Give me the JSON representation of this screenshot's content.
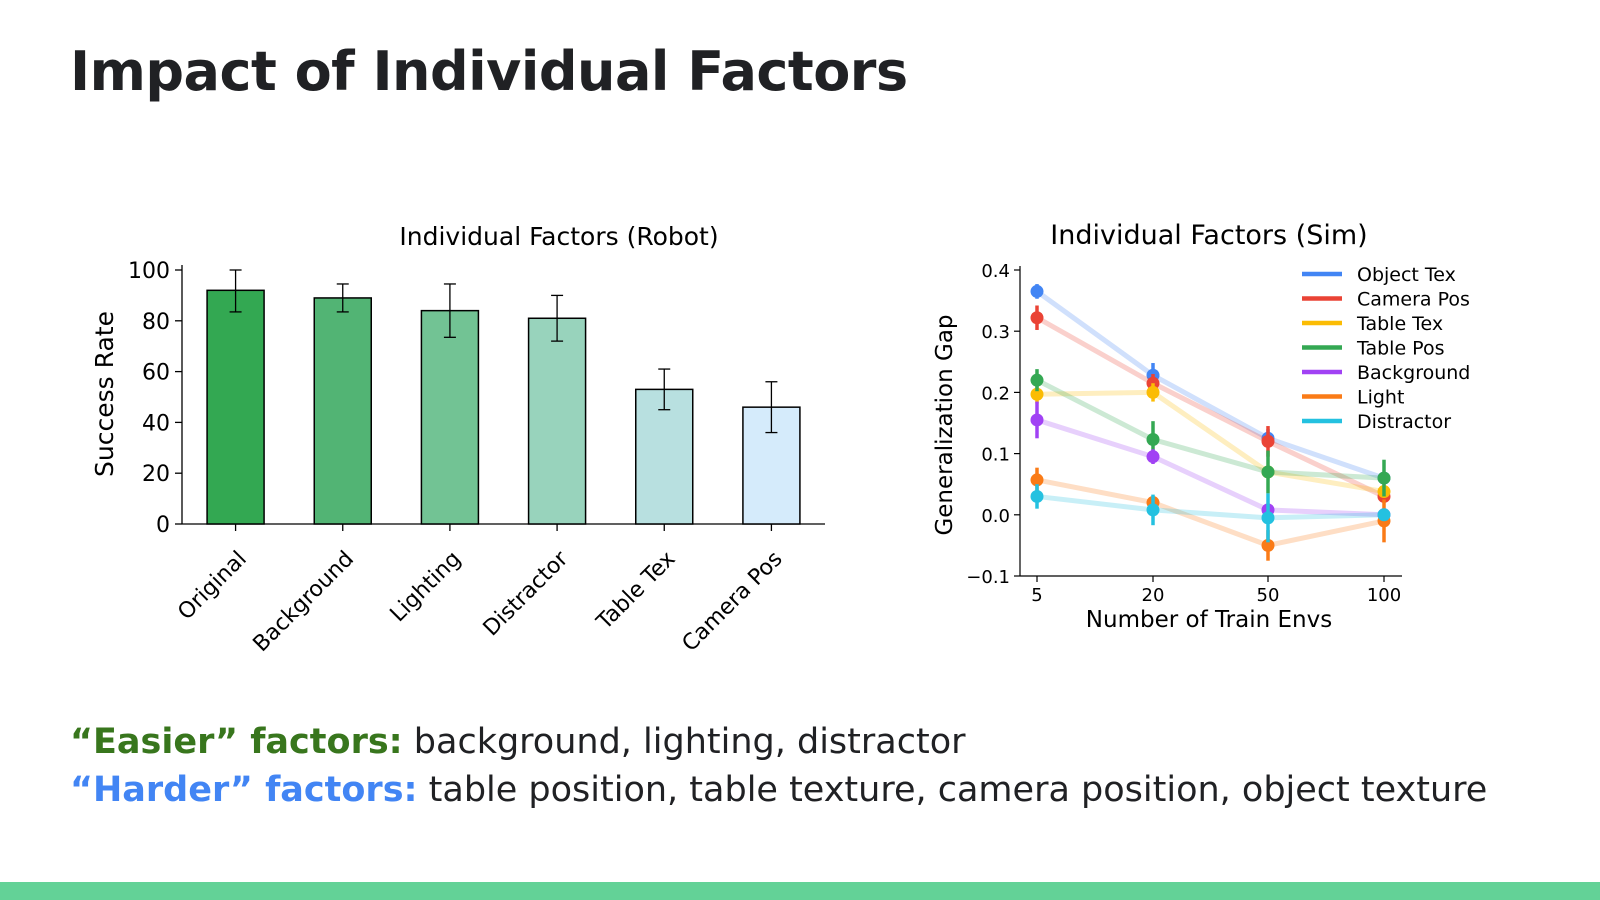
{
  "title": "Impact of Individual Factors",
  "captions": {
    "easier_label": "“Easier” factors:",
    "easier_text": " background, lighting, distractor",
    "harder_label": "“Harder” factors:",
    "harder_text": " table position, table texture, camera position, object texture"
  },
  "colors": {
    "easier": "#38761d",
    "harder": "#4285f4",
    "footer": "#63d297"
  },
  "chart_data": [
    {
      "type": "bar",
      "title": "Individual Factors  (Robot)",
      "xlabel": "",
      "ylabel": "Success Rate",
      "ylim": [
        0,
        100
      ],
      "yticks": [
        0,
        20,
        40,
        60,
        80,
        100
      ],
      "categories": [
        "Original",
        "Background",
        "Lighting",
        "Distractor",
        "Table Tex",
        "Camera Pos"
      ],
      "values": [
        92,
        89,
        84,
        81,
        53,
        46
      ],
      "errors": [
        8.5,
        5.5,
        10.5,
        9,
        8,
        10
      ],
      "bar_colors": [
        "#33a852",
        "#52b474",
        "#72c394",
        "#98d3bc",
        "#b8e0e0",
        "#d5ebfb"
      ],
      "grid": false
    },
    {
      "type": "line",
      "title": "Individual Factors (Sim)",
      "xlabel": "Number of Train Envs",
      "ylabel": "Generalization Gap",
      "x": [
        5,
        20,
        50,
        100
      ],
      "xticks": [
        "5",
        "20",
        "50",
        "100"
      ],
      "ylim": [
        -0.1,
        0.4
      ],
      "yticks": [
        -0.1,
        0.0,
        0.1,
        0.2,
        0.3,
        0.4
      ],
      "ytick_labels": [
        "−0.1",
        "0.0",
        "0.1",
        "0.2",
        "0.3",
        "0.4"
      ],
      "legend_position": "top-right",
      "grid": false,
      "series": [
        {
          "name": "Object Tex",
          "color": "#4285f4",
          "values": [
            0.365,
            0.228,
            0.125,
            0.06
          ],
          "errors": [
            0.012,
            0.02,
            0.015,
            0.01
          ]
        },
        {
          "name": "Camera Pos",
          "color": "#ea4335",
          "values": [
            0.322,
            0.215,
            0.12,
            0.03
          ],
          "errors": [
            0.02,
            0.015,
            0.025,
            0.01
          ]
        },
        {
          "name": "Table Tex",
          "color": "#fbbc04",
          "values": [
            0.197,
            0.2,
            0.07,
            0.038
          ],
          "errors": [
            0.015,
            0.015,
            0.01,
            0.01
          ]
        },
        {
          "name": "Table Pos",
          "color": "#34a853",
          "values": [
            0.22,
            0.123,
            0.07,
            0.06
          ],
          "errors": [
            0.018,
            0.03,
            0.035,
            0.03
          ]
        },
        {
          "name": "Background",
          "color": "#a142f4",
          "values": [
            0.155,
            0.095,
            0.008,
            0.0
          ],
          "errors": [
            0.03,
            0.012,
            0.01,
            0.005
          ]
        },
        {
          "name": "Light",
          "color": "#fa7b17",
          "values": [
            0.057,
            0.02,
            -0.05,
            -0.01
          ],
          "errors": [
            0.02,
            0.01,
            0.025,
            0.035
          ]
        },
        {
          "name": "Distractor",
          "color": "#24c1e0",
          "values": [
            0.03,
            0.008,
            -0.005,
            0.0
          ],
          "errors": [
            0.02,
            0.025,
            0.04,
            0.01
          ]
        }
      ]
    }
  ]
}
